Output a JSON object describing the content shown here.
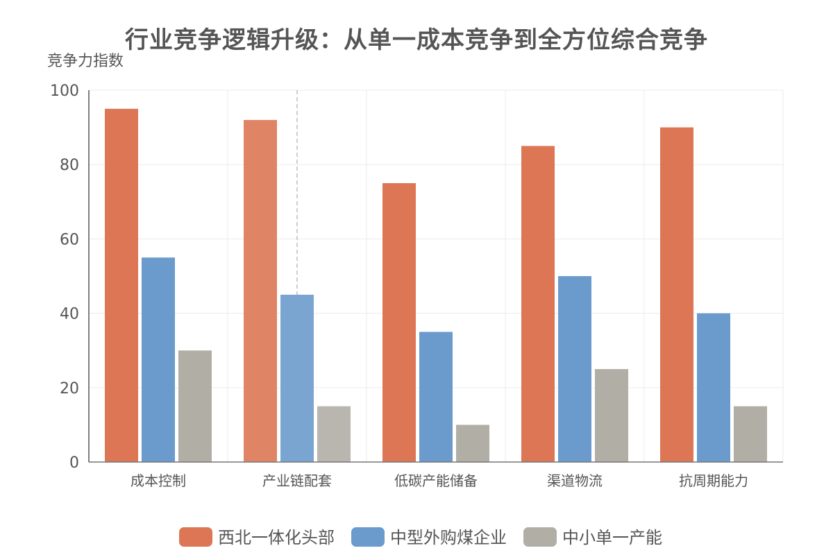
{
  "chart_data": {
    "type": "bar",
    "title": "行业竞争逻辑升级：从单一成本竞争到全方位综合竞争",
    "ylabel": "竞争力指数",
    "xlabel": "",
    "ylim": [
      0,
      100
    ],
    "yticks": [
      0,
      20,
      40,
      60,
      80,
      100
    ],
    "grid": true,
    "legend_position": "bottom",
    "categories": [
      "成本控制",
      "产业链配套",
      "低碳产能储备",
      "渠道物流",
      "抗周期能力"
    ],
    "series": [
      {
        "name": "西北一体化头部",
        "color": "#dc7655",
        "values": [
          95,
          92,
          75,
          85,
          90
        ]
      },
      {
        "name": "中型外购煤企业",
        "color": "#6b9bcc",
        "values": [
          55,
          45,
          35,
          50,
          40
        ]
      },
      {
        "name": "中小单一产能",
        "color": "#b1aea6",
        "values": [
          30,
          15,
          10,
          25,
          15
        ]
      }
    ],
    "highlighted_category": "产业链配套"
  }
}
